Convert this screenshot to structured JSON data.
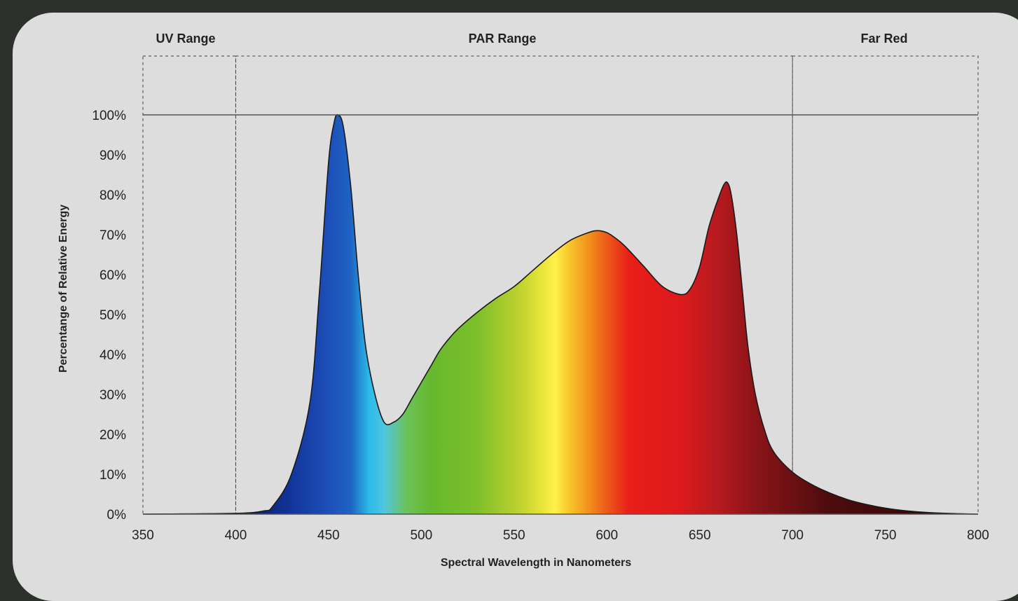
{
  "chart_data": {
    "type": "area",
    "title": "",
    "xlabel": "Spectral Wavelength in Nanometers",
    "ylabel": "Percentange of Relative Energy",
    "xlim": [
      350,
      800
    ],
    "ylim": [
      0,
      100
    ],
    "y_axis_max_label": 100,
    "x_ticks": [
      "350",
      "400",
      "450",
      "500",
      "550",
      "600",
      "650",
      "700",
      "750",
      "800"
    ],
    "y_ticks": [
      "0%",
      "10%",
      "20%",
      "30%",
      "40%",
      "50%",
      "60%",
      "70%",
      "80%",
      "90%",
      "100%"
    ],
    "grid": false,
    "regions": [
      {
        "label": "UV Range",
        "x_start": 350,
        "x_end": 400
      },
      {
        "label": "PAR Range",
        "x_start": 400,
        "x_end": 700
      },
      {
        "label": "Far Red",
        "x_start": 700,
        "x_end": 800
      }
    ],
    "series": [
      {
        "x": [
          350,
          400,
          415,
          420,
          430,
          440,
          445,
          450,
          453,
          455,
          458,
          462,
          466,
          470,
          475,
          480,
          485,
          490,
          495,
          500,
          505,
          510,
          515,
          520,
          530,
          540,
          550,
          560,
          570,
          580,
          590,
          595,
          600,
          605,
          610,
          620,
          630,
          640,
          645,
          650,
          655,
          660,
          663,
          665,
          667,
          670,
          673,
          676,
          680,
          685,
          690,
          700,
          710,
          720,
          730,
          740,
          750,
          760,
          770,
          780,
          790,
          800
        ],
        "values": [
          0,
          0.2,
          0.8,
          2,
          10,
          28,
          55,
          88,
          98,
          100,
          97,
          82,
          60,
          42,
          30,
          23,
          23,
          25,
          29,
          33,
          37,
          41,
          44,
          46.5,
          50.5,
          54,
          57,
          61,
          65,
          68.5,
          70.5,
          71,
          70.5,
          69,
          67,
          62,
          57,
          55,
          56.5,
          62,
          72,
          79,
          82.5,
          83,
          80,
          70,
          56,
          42,
          30,
          21,
          15.5,
          10.5,
          7.5,
          5.3,
          3.6,
          2.4,
          1.5,
          0.9,
          0.5,
          0.25,
          0.1,
          0
        ]
      }
    ],
    "colors": {
      "curve_stroke": "#1a1a1a",
      "axis": "#555555",
      "region_border": "#444444",
      "spectrum_stops": [
        {
          "wavelength": 410,
          "color": "#0a1f6e"
        },
        {
          "wavelength": 430,
          "color": "#12359a"
        },
        {
          "wavelength": 450,
          "color": "#1d4fb8"
        },
        {
          "wavelength": 462,
          "color": "#1e63c4"
        },
        {
          "wavelength": 472,
          "color": "#2bbbe8"
        },
        {
          "wavelength": 480,
          "color": "#4fc6e0"
        },
        {
          "wavelength": 492,
          "color": "#6cc25a"
        },
        {
          "wavelength": 505,
          "color": "#66b82e"
        },
        {
          "wavelength": 530,
          "color": "#7dbf2a"
        },
        {
          "wavelength": 552,
          "color": "#bcd02e"
        },
        {
          "wavelength": 565,
          "color": "#e8e43a"
        },
        {
          "wavelength": 572,
          "color": "#fff04a"
        },
        {
          "wavelength": 580,
          "color": "#f7c52c"
        },
        {
          "wavelength": 590,
          "color": "#f1921c"
        },
        {
          "wavelength": 600,
          "color": "#ec5a18"
        },
        {
          "wavelength": 612,
          "color": "#e81e19"
        },
        {
          "wavelength": 640,
          "color": "#dc1a1c"
        },
        {
          "wavelength": 660,
          "color": "#b51a1f"
        },
        {
          "wavelength": 680,
          "color": "#8a1418"
        },
        {
          "wavelength": 720,
          "color": "#4d0c0e"
        },
        {
          "wavelength": 800,
          "color": "#2a0607"
        }
      ]
    }
  }
}
